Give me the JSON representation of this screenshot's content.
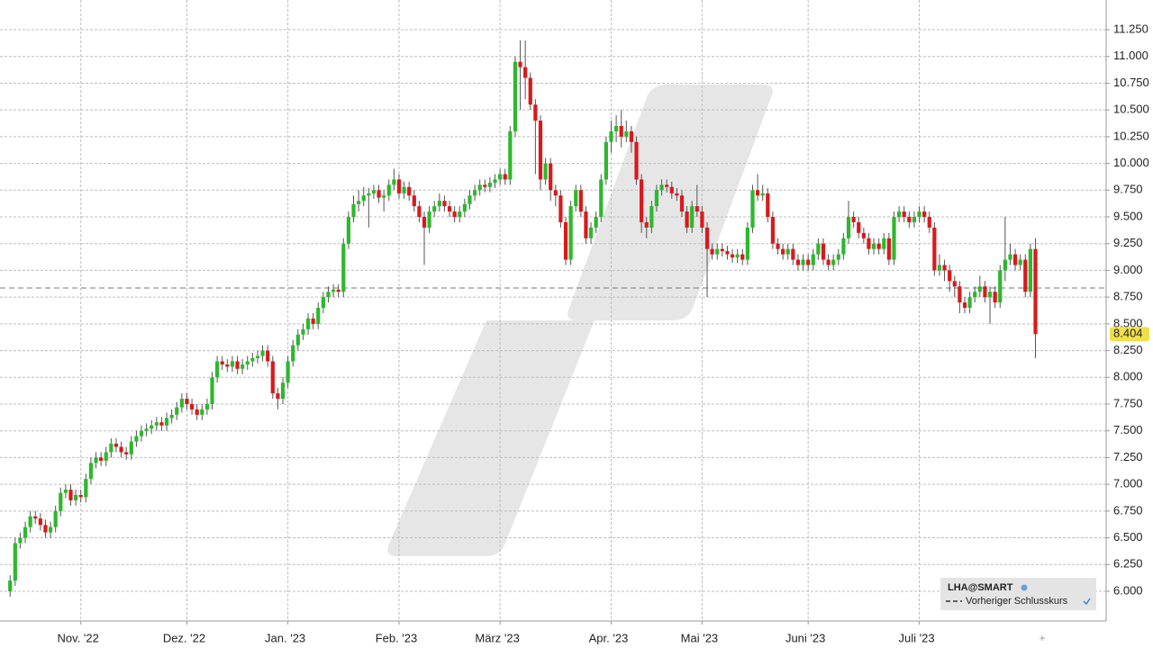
{
  "chart_data": {
    "type": "candlestick",
    "up_color": "#2db82d",
    "down_color": "#d9191c",
    "grid": true,
    "ylim": [
      5.722,
      11.528
    ],
    "xlim": [
      -2,
      217
    ],
    "yticks": [
      {
        "value": 6,
        "label": "6.000"
      },
      {
        "value": 6.25,
        "label": "6.250"
      },
      {
        "value": 6.5,
        "label": "6.500"
      },
      {
        "value": 6.75,
        "label": "6.750"
      },
      {
        "value": 7,
        "label": "7.000"
      },
      {
        "value": 7.25,
        "label": "7.250"
      },
      {
        "value": 7.5,
        "label": "7.500"
      },
      {
        "value": 7.75,
        "label": "7.750"
      },
      {
        "value": 8,
        "label": "8.000"
      },
      {
        "value": 8.25,
        "label": "8.250"
      },
      {
        "value": 8.5,
        "label": "8.500"
      },
      {
        "value": 8.75,
        "label": "8.750"
      },
      {
        "value": 9,
        "label": "9.000"
      },
      {
        "value": 9.25,
        "label": "9.250"
      },
      {
        "value": 9.5,
        "label": "9.500"
      },
      {
        "value": 9.75,
        "label": "9.750"
      },
      {
        "value": 10,
        "label": "10.000"
      },
      {
        "value": 10.25,
        "label": "10.250"
      },
      {
        "value": 10.5,
        "label": "10.500"
      },
      {
        "value": 10.75,
        "label": "10.750"
      },
      {
        "value": 11,
        "label": "11.000"
      },
      {
        "value": 11.25,
        "label": "11.250"
      }
    ],
    "xticks": [
      {
        "value": 14,
        "label": "Nov. '22"
      },
      {
        "value": 35,
        "label": "Dez. '22"
      },
      {
        "value": 55,
        "label": "Jan. '23"
      },
      {
        "value": 77,
        "label": "Feb. '23"
      },
      {
        "value": 97,
        "label": "März '23"
      },
      {
        "value": 119,
        "label": "Apr. '23"
      },
      {
        "value": 137,
        "label": "Mai '23"
      },
      {
        "value": 158,
        "label": "Juni '23"
      },
      {
        "value": 180,
        "label": "Juli '23"
      }
    ],
    "prev_close": 8.835,
    "legend": {
      "title": "LHA@SMART",
      "entries": [
        "Vorheriger Schlusskurs"
      ]
    },
    "open": [
      6.0,
      6.1,
      6.45,
      6.5,
      6.6,
      6.7,
      6.68,
      6.62,
      6.55,
      6.6,
      6.75,
      6.92,
      6.95,
      6.85,
      6.9,
      6.88,
      7.05,
      7.2,
      7.25,
      7.22,
      7.3,
      7.38,
      7.35,
      7.3,
      7.28,
      7.4,
      7.45,
      7.5,
      7.52,
      7.55,
      7.58,
      7.55,
      7.62,
      7.65,
      7.72,
      7.8,
      7.75,
      7.7,
      7.65,
      7.7,
      7.75,
      8.0,
      8.15,
      8.12,
      8.1,
      8.15,
      8.08,
      8.12,
      8.15,
      8.18,
      8.2,
      8.25,
      8.15,
      7.85,
      7.8,
      7.95,
      8.15,
      8.3,
      8.4,
      8.45,
      8.55,
      8.5,
      8.65,
      8.75,
      8.8,
      8.82,
      8.8,
      9.25,
      9.5,
      9.62,
      9.65,
      9.7,
      9.72,
      9.75,
      9.68,
      9.7,
      9.8,
      9.85,
      9.72,
      9.78,
      9.7,
      9.6,
      9.5,
      9.4,
      9.55,
      9.6,
      9.65,
      9.6,
      9.55,
      9.5,
      9.55,
      9.62,
      9.7,
      9.75,
      9.8,
      9.78,
      9.82,
      9.85,
      9.9,
      9.85,
      10.3,
      10.95,
      10.9,
      10.8,
      10.55,
      10.4,
      9.85,
      10.0,
      9.75,
      9.7,
      9.45,
      9.1,
      9.6,
      9.75,
      9.55,
      9.3,
      9.4,
      9.5,
      9.85,
      10.2,
      10.3,
      10.35,
      10.25,
      10.3,
      10.2,
      9.85,
      9.45,
      9.4,
      9.6,
      9.75,
      9.8,
      9.78,
      9.72,
      9.7,
      9.55,
      9.4,
      9.6,
      9.55,
      9.4,
      9.2,
      9.15,
      9.2,
      9.18,
      9.15,
      9.12,
      9.15,
      9.1,
      9.4,
      9.75,
      9.7,
      9.72,
      9.5,
      9.25,
      9.2,
      9.15,
      9.2,
      9.1,
      9.05,
      9.1,
      9.05,
      9.15,
      9.25,
      9.1,
      9.05,
      9.1,
      9.15,
      9.3,
      9.5,
      9.45,
      9.35,
      9.3,
      9.2,
      9.25,
      9.2,
      9.3,
      9.1,
      9.5,
      9.55,
      9.5,
      9.45,
      9.5,
      9.55,
      9.5,
      9.4,
      9.0,
      9.05,
      9.0,
      8.9,
      8.85,
      8.7,
      8.65,
      8.75,
      8.8,
      8.85,
      8.75,
      8.8,
      8.7,
      9.0,
      9.1,
      9.15,
      9.05,
      9.1,
      8.8,
      9.2
    ],
    "high": [
      6.15,
      6.5,
      6.55,
      6.65,
      6.75,
      6.75,
      6.73,
      6.67,
      6.65,
      6.8,
      6.97,
      7.0,
      7.0,
      6.95,
      6.95,
      7.1,
      7.25,
      7.3,
      7.3,
      7.35,
      7.43,
      7.43,
      7.4,
      7.35,
      7.45,
      7.5,
      7.55,
      7.57,
      7.6,
      7.63,
      7.63,
      7.67,
      7.7,
      7.77,
      7.85,
      7.85,
      7.8,
      7.75,
      7.75,
      7.8,
      8.05,
      8.2,
      8.2,
      8.17,
      8.2,
      8.2,
      8.17,
      8.2,
      8.23,
      8.25,
      8.3,
      8.3,
      8.2,
      7.9,
      8.0,
      8.2,
      8.35,
      8.45,
      8.5,
      8.6,
      8.6,
      8.7,
      8.8,
      8.85,
      8.87,
      8.87,
      9.3,
      9.55,
      9.7,
      9.75,
      9.78,
      9.77,
      9.8,
      9.8,
      9.75,
      9.85,
      9.95,
      9.9,
      9.83,
      9.83,
      9.75,
      9.65,
      9.55,
      9.6,
      9.65,
      9.72,
      9.7,
      9.65,
      9.6,
      9.6,
      9.67,
      9.75,
      9.8,
      9.85,
      9.85,
      9.87,
      9.9,
      9.95,
      9.95,
      10.35,
      11.0,
      11.15,
      11.15,
      10.85,
      10.6,
      10.45,
      10.05,
      10.05,
      9.8,
      9.75,
      9.5,
      9.65,
      9.8,
      9.8,
      9.6,
      9.45,
      9.55,
      9.9,
      10.25,
      10.4,
      10.45,
      10.5,
      10.4,
      10.35,
      10.25,
      9.9,
      9.5,
      9.65,
      9.8,
      9.85,
      9.85,
      9.83,
      9.77,
      9.75,
      9.6,
      9.65,
      9.8,
      9.6,
      9.45,
      9.25,
      9.25,
      9.25,
      9.23,
      9.2,
      9.2,
      9.2,
      9.45,
      9.8,
      9.9,
      9.8,
      9.77,
      9.55,
      9.3,
      9.25,
      9.25,
      9.25,
      9.15,
      9.15,
      9.15,
      9.2,
      9.3,
      9.3,
      9.15,
      9.15,
      9.2,
      9.35,
      9.65,
      9.55,
      9.5,
      9.4,
      9.35,
      9.3,
      9.3,
      9.35,
      9.35,
      9.55,
      9.6,
      9.6,
      9.55,
      9.55,
      9.6,
      9.6,
      9.55,
      9.45,
      9.15,
      9.1,
      9.05,
      8.95,
      8.9,
      8.75,
      8.8,
      8.85,
      8.95,
      8.9,
      8.85,
      8.85,
      9.05,
      9.5,
      9.25,
      9.2,
      9.15,
      9.15,
      9.25,
      9.3
    ],
    "low": [
      5.95,
      6.05,
      6.4,
      6.45,
      6.55,
      6.63,
      6.57,
      6.5,
      6.5,
      6.55,
      6.7,
      6.87,
      6.8,
      6.8,
      6.83,
      6.83,
      7.0,
      7.15,
      7.17,
      7.17,
      7.25,
      7.3,
      7.25,
      7.23,
      7.23,
      7.35,
      7.4,
      7.45,
      7.47,
      7.5,
      7.5,
      7.5,
      7.57,
      7.6,
      7.67,
      7.7,
      7.65,
      7.6,
      7.6,
      7.65,
      7.7,
      7.95,
      8.07,
      8.05,
      8.05,
      8.03,
      8.03,
      8.07,
      8.1,
      8.13,
      8.15,
      8.1,
      7.8,
      7.7,
      7.75,
      7.9,
      8.1,
      8.25,
      8.35,
      8.4,
      8.45,
      8.45,
      8.6,
      8.7,
      8.75,
      8.75,
      8.75,
      9.2,
      9.45,
      9.55,
      9.6,
      9.4,
      9.67,
      9.63,
      9.55,
      9.65,
      9.75,
      9.67,
      9.67,
      9.65,
      9.55,
      9.45,
      9.05,
      9.35,
      9.5,
      9.55,
      9.55,
      9.5,
      9.45,
      9.45,
      9.5,
      9.57,
      9.65,
      9.7,
      9.73,
      9.73,
      9.77,
      9.8,
      9.8,
      9.8,
      10.25,
      10.5,
      10.6,
      10.5,
      9.9,
      9.75,
      9.8,
      9.65,
      9.6,
      9.4,
      9.05,
      9.05,
      9.55,
      9.5,
      9.25,
      9.25,
      9.35,
      9.45,
      9.8,
      10.1,
      10.2,
      10.15,
      10.2,
      10.1,
      9.8,
      9.35,
      9.3,
      9.35,
      9.55,
      9.7,
      9.73,
      9.67,
      9.65,
      9.5,
      9.35,
      9.35,
      9.5,
      9.35,
      8.75,
      9.1,
      9.1,
      9.13,
      9.1,
      9.07,
      9.07,
      9.05,
      9.05,
      9.35,
      9.65,
      9.65,
      9.45,
      9.2,
      9.15,
      9.1,
      9.1,
      9.05,
      9.0,
      9.0,
      9.0,
      9.0,
      9.1,
      9.05,
      9.0,
      9.0,
      9.05,
      9.1,
      9.25,
      9.4,
      9.3,
      9.25,
      9.15,
      9.15,
      9.15,
      9.15,
      9.05,
      9.05,
      9.45,
      9.45,
      9.4,
      9.4,
      9.45,
      9.45,
      9.35,
      8.95,
      8.95,
      8.9,
      8.8,
      8.75,
      8.6,
      8.6,
      8.6,
      8.7,
      8.75,
      8.7,
      8.5,
      8.65,
      8.65,
      8.9,
      9.05,
      9.0,
      9.0,
      8.75,
      8.75,
      8.18
    ],
    "close": [
      6.1,
      6.45,
      6.5,
      6.6,
      6.7,
      6.68,
      6.62,
      6.55,
      6.6,
      6.75,
      6.92,
      6.95,
      6.85,
      6.9,
      6.88,
      7.05,
      7.2,
      7.25,
      7.22,
      7.3,
      7.38,
      7.35,
      7.3,
      7.28,
      7.4,
      7.45,
      7.5,
      7.52,
      7.55,
      7.58,
      7.55,
      7.62,
      7.65,
      7.72,
      7.8,
      7.75,
      7.7,
      7.65,
      7.7,
      7.75,
      8.0,
      8.15,
      8.12,
      8.1,
      8.15,
      8.08,
      8.12,
      8.15,
      8.18,
      8.2,
      8.25,
      8.15,
      7.85,
      7.8,
      7.95,
      8.15,
      8.3,
      8.4,
      8.45,
      8.55,
      8.5,
      8.65,
      8.75,
      8.8,
      8.82,
      8.8,
      9.25,
      9.5,
      9.62,
      9.65,
      9.7,
      9.72,
      9.75,
      9.68,
      9.7,
      9.8,
      9.85,
      9.72,
      9.78,
      9.7,
      9.6,
      9.5,
      9.4,
      9.55,
      9.6,
      9.65,
      9.6,
      9.55,
      9.5,
      9.55,
      9.62,
      9.7,
      9.75,
      9.8,
      9.78,
      9.82,
      9.85,
      9.9,
      9.85,
      10.3,
      10.95,
      10.9,
      10.8,
      10.55,
      10.4,
      9.85,
      10.0,
      9.75,
      9.7,
      9.45,
      9.1,
      9.6,
      9.75,
      9.55,
      9.3,
      9.4,
      9.5,
      9.85,
      10.2,
      10.3,
      10.35,
      10.25,
      10.3,
      10.2,
      9.85,
      9.45,
      9.4,
      9.6,
      9.75,
      9.8,
      9.78,
      9.72,
      9.7,
      9.55,
      9.4,
      9.6,
      9.55,
      9.4,
      9.2,
      9.15,
      9.2,
      9.18,
      9.15,
      9.12,
      9.15,
      9.1,
      9.4,
      9.75,
      9.7,
      9.72,
      9.5,
      9.25,
      9.2,
      9.15,
      9.2,
      9.1,
      9.05,
      9.1,
      9.05,
      9.15,
      9.25,
      9.1,
      9.05,
      9.1,
      9.15,
      9.3,
      9.5,
      9.45,
      9.35,
      9.3,
      9.2,
      9.25,
      9.2,
      9.3,
      9.1,
      9.5,
      9.55,
      9.5,
      9.45,
      9.5,
      9.55,
      9.5,
      9.4,
      9.0,
      9.05,
      9.0,
      8.9,
      8.85,
      8.7,
      8.65,
      8.75,
      8.8,
      8.85,
      8.75,
      8.8,
      8.7,
      9.0,
      9.1,
      9.15,
      9.05,
      9.1,
      8.8,
      9.2,
      8.404
    ]
  }
}
